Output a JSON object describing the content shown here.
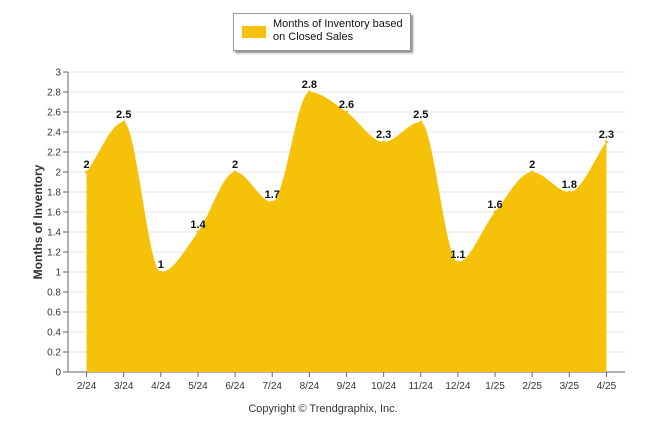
{
  "chart_data": {
    "type": "area",
    "categories": [
      "2/24",
      "3/24",
      "4/24",
      "5/24",
      "6/24",
      "7/24",
      "8/24",
      "9/24",
      "10/24",
      "11/24",
      "12/24",
      "1/25",
      "2/25",
      "3/25",
      "4/25"
    ],
    "series": [
      {
        "name": "Months of Inventory based on Closed Sales",
        "values": [
          2,
          2.5,
          1,
          1.4,
          2,
          1.7,
          2.8,
          2.6,
          2.3,
          2.5,
          1.1,
          1.6,
          2,
          1.8,
          2.3
        ]
      }
    ],
    "data_labels": [
      "2",
      "2.5",
      "1",
      "1.4",
      "2",
      "1.7",
      "2.8",
      "2.6",
      "2.3",
      "2.5",
      "1.1",
      "1.6",
      "2",
      "1.8",
      "2.3"
    ],
    "ylabel": "Months of Inventory",
    "ylim": [
      0,
      3
    ],
    "yticks": [
      "0",
      "0.2",
      "0.4",
      "0.6",
      "0.8",
      "1",
      "1.2",
      "1.4",
      "1.6",
      "1.8",
      "2",
      "2.2",
      "2.4",
      "2.6",
      "2.8",
      "3"
    ],
    "grid": true,
    "legend_position": "top-center",
    "fill_color": "#f5c209"
  },
  "legend": {
    "label": "Months of Inventory based on Closed Sales"
  },
  "footer": {
    "copyright": "Copyright © Trendgraphix, Inc."
  }
}
